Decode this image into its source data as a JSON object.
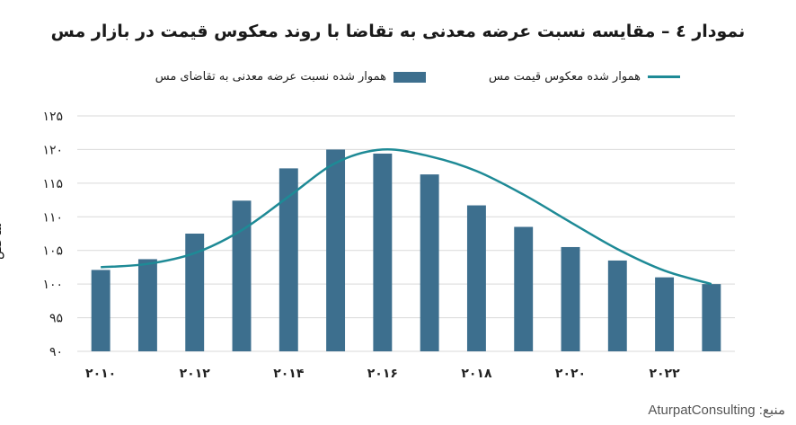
{
  "chart_data": {
    "type": "bar",
    "title": "نمودار ٤ – مقایسه نسبت عرضه معدنی به تقاضا با روند معکوس قیمت در بازار مس",
    "ylabel": "شاخص",
    "ylim": [
      90,
      125
    ],
    "yticks": [
      "۹۰",
      "۹۵",
      "۱۰۰",
      "۱۰۵",
      "۱۱۰",
      "۱۱۵",
      "۱۲۰",
      "۱۲۵"
    ],
    "ytick_values": [
      90,
      95,
      100,
      105,
      110,
      115,
      120,
      125
    ],
    "x": [
      2010,
      2011,
      2012,
      2013,
      2014,
      2015,
      2016,
      2017,
      2018,
      2019,
      2020,
      2021,
      2022,
      2023
    ],
    "xticks": [
      "۲۰۱۰",
      "۲۰۱۲",
      "۲۰۱۴",
      "۲۰۱۶",
      "۲۰۱۸",
      "۲۰۲۰",
      "۲۰۲۲"
    ],
    "xtick_values": [
      2010,
      2012,
      2014,
      2016,
      2018,
      2020,
      2022
    ],
    "series": [
      {
        "name": "هموار شده نسبت عرضه معدنی به تقاضای مس",
        "kind": "bar",
        "color": "#3d6f8e",
        "values": [
          102.1,
          103.7,
          107.5,
          112.4,
          117.2,
          120.0,
          119.4,
          116.3,
          111.7,
          108.5,
          105.5,
          103.5,
          101.0,
          100.0
        ]
      },
      {
        "name": "هموار شده معکوس قیمت مس",
        "kind": "line",
        "color": "#1e8a96",
        "values": [
          102.5,
          103.0,
          104.6,
          108.0,
          113.0,
          118.0,
          120.0,
          119.0,
          116.8,
          113.3,
          109.2,
          105.2,
          102.0,
          100.0
        ]
      }
    ],
    "grid": true,
    "legend": "top"
  },
  "source_label": "منبع: AturpatConsulting"
}
